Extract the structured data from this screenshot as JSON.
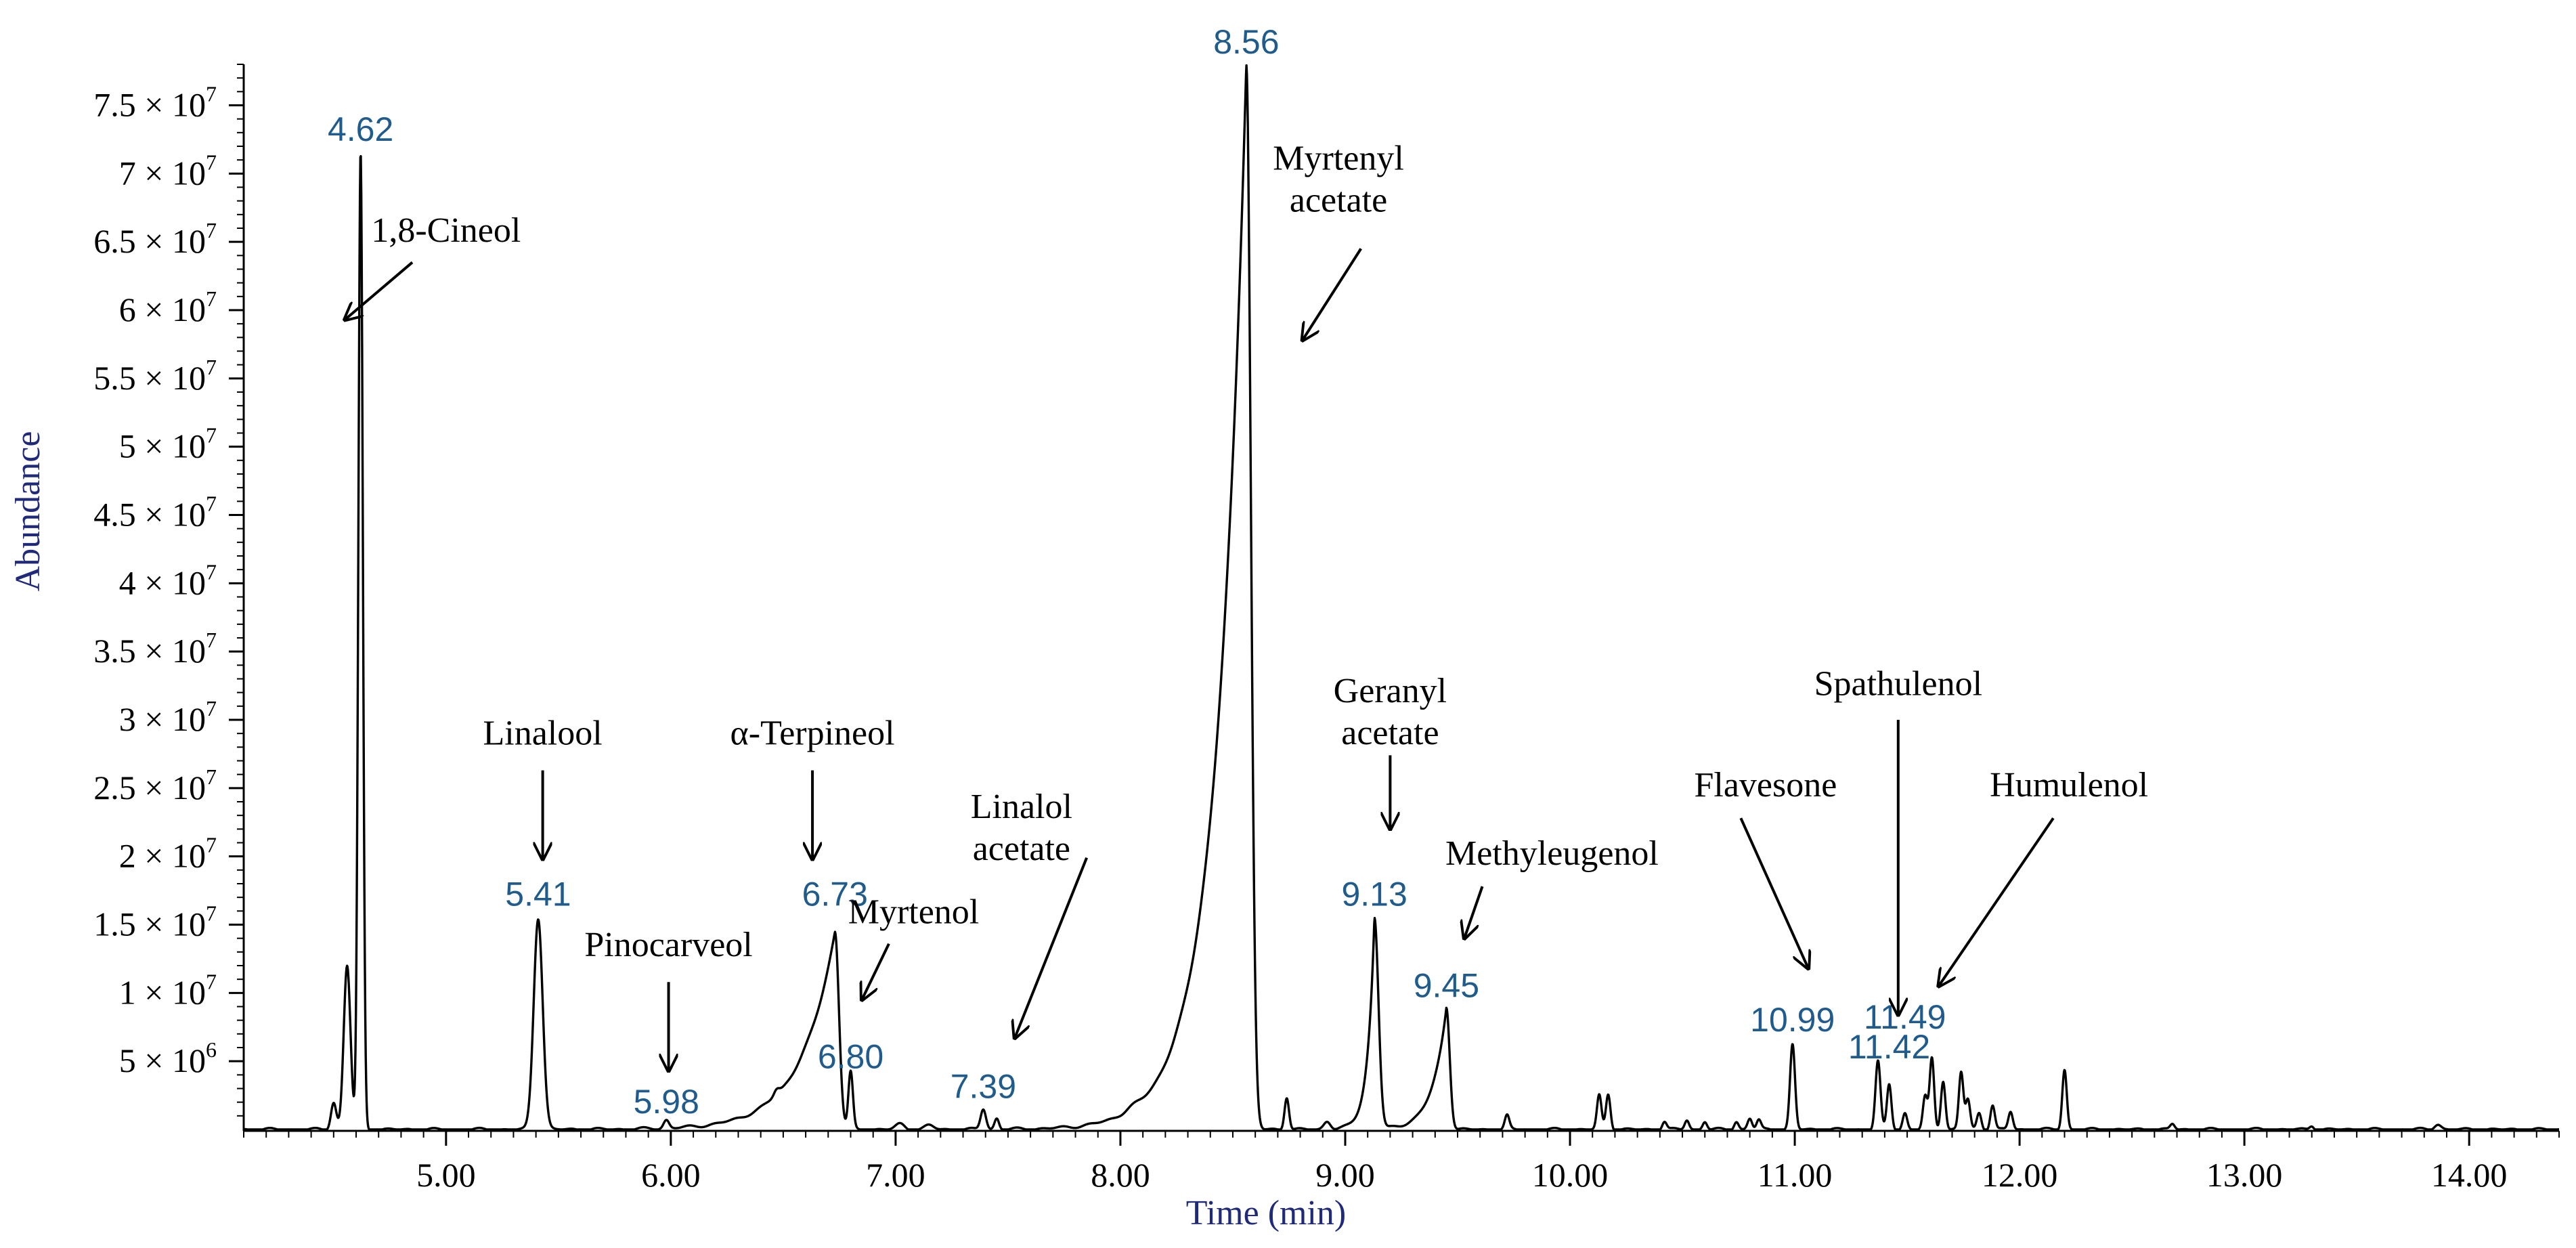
{
  "chart_data": {
    "type": "line",
    "xlabel": "Time (min)",
    "ylabel": "Abundance",
    "xlim": [
      4.1,
      14.4
    ],
    "ylim": [
      0,
      7.8
    ],
    "x_ticks": [
      {
        "value": 5.0,
        "label": "5.00"
      },
      {
        "value": 6.0,
        "label": "6.00"
      },
      {
        "value": 7.0,
        "label": "7.00"
      },
      {
        "value": 8.0,
        "label": "8.00"
      },
      {
        "value": 9.0,
        "label": "9.00"
      },
      {
        "value": 10.0,
        "label": "10.00"
      },
      {
        "value": 11.0,
        "label": "11.00"
      },
      {
        "value": 12.0,
        "label": "12.00"
      },
      {
        "value": 13.0,
        "label": "13.00"
      },
      {
        "value": 14.0,
        "label": "14.00"
      }
    ],
    "y_ticks": [
      {
        "value": 0.5,
        "mantissa": "5",
        "exponent": "6"
      },
      {
        "value": 1.0,
        "mantissa": "1",
        "exponent": "7"
      },
      {
        "value": 1.5,
        "mantissa": "1.5",
        "exponent": "7"
      },
      {
        "value": 2.0,
        "mantissa": "2",
        "exponent": "7"
      },
      {
        "value": 2.5,
        "mantissa": "2.5",
        "exponent": "7"
      },
      {
        "value": 3.0,
        "mantissa": "3",
        "exponent": "7"
      },
      {
        "value": 3.5,
        "mantissa": "3.5",
        "exponent": "7"
      },
      {
        "value": 4.0,
        "mantissa": "4",
        "exponent": "7"
      },
      {
        "value": 4.5,
        "mantissa": "4.5",
        "exponent": "7"
      },
      {
        "value": 5.0,
        "mantissa": "5",
        "exponent": "7"
      },
      {
        "value": 5.5,
        "mantissa": "5.5",
        "exponent": "7"
      },
      {
        "value": 6.0,
        "mantissa": "6",
        "exponent": "7"
      },
      {
        "value": 6.5,
        "mantissa": "6.5",
        "exponent": "7"
      },
      {
        "value": 7.0,
        "mantissa": "7",
        "exponent": "7"
      },
      {
        "value": 7.5,
        "mantissa": "7.5",
        "exponent": "7"
      }
    ],
    "peaks": [
      {
        "x": 4.5,
        "y": 0.2,
        "w": 0.012,
        "shape": "gauss"
      },
      {
        "x": 4.56,
        "y": 1.2,
        "w": 0.015,
        "shape": "gauss"
      },
      {
        "x": 4.62,
        "y": 7.15,
        "w": 0.01,
        "shape": "gauss"
      },
      {
        "x": 5.41,
        "y": 1.55,
        "w": 0.02,
        "shape": "gauss"
      },
      {
        "x": 5.98,
        "y": 0.06,
        "w": 0.012,
        "shape": "gauss"
      },
      {
        "x": 6.47,
        "y": 0.04,
        "w": 0.012,
        "shape": "gauss"
      },
      {
        "x": 6.73,
        "y": 1.45,
        "w": 0.018,
        "tail": 0.15,
        "shape": "tail"
      },
      {
        "x": 6.8,
        "y": 0.42,
        "w": 0.01,
        "shape": "gauss"
      },
      {
        "x": 7.02,
        "y": 0.04,
        "w": 0.02,
        "shape": "gauss"
      },
      {
        "x": 7.15,
        "y": 0.03,
        "w": 0.02,
        "shape": "gauss"
      },
      {
        "x": 7.39,
        "y": 0.15,
        "w": 0.012,
        "shape": "gauss"
      },
      {
        "x": 7.45,
        "y": 0.08,
        "w": 0.01,
        "shape": "gauss"
      },
      {
        "x": 8.05,
        "y": 0.02,
        "w": 0.03,
        "shape": "gauss"
      },
      {
        "x": 8.56,
        "y": 7.8,
        "w": 0.02,
        "tail": 0.13,
        "shape": "tail"
      },
      {
        "x": 8.74,
        "y": 0.24,
        "w": 0.01,
        "shape": "gauss"
      },
      {
        "x": 8.92,
        "y": 0.06,
        "w": 0.015,
        "shape": "gauss"
      },
      {
        "x": 9.13,
        "y": 1.55,
        "w": 0.018,
        "tail": 0.03,
        "shape": "tail"
      },
      {
        "x": 9.45,
        "y": 0.9,
        "w": 0.015,
        "tail": 0.06,
        "shape": "tail"
      },
      {
        "x": 9.72,
        "y": 0.1,
        "w": 0.01,
        "shape": "gauss"
      },
      {
        "x": 10.13,
        "y": 0.25,
        "w": 0.01,
        "shape": "gauss"
      },
      {
        "x": 10.17,
        "y": 0.26,
        "w": 0.01,
        "shape": "gauss"
      },
      {
        "x": 10.42,
        "y": 0.06,
        "w": 0.01,
        "shape": "gauss"
      },
      {
        "x": 10.52,
        "y": 0.07,
        "w": 0.01,
        "shape": "gauss"
      },
      {
        "x": 10.6,
        "y": 0.06,
        "w": 0.01,
        "shape": "gauss"
      },
      {
        "x": 10.74,
        "y": 0.06,
        "w": 0.01,
        "shape": "gauss"
      },
      {
        "x": 10.8,
        "y": 0.08,
        "w": 0.01,
        "shape": "gauss"
      },
      {
        "x": 10.84,
        "y": 0.07,
        "w": 0.01,
        "shape": "gauss"
      },
      {
        "x": 10.99,
        "y": 0.62,
        "w": 0.011,
        "shape": "gauss"
      },
      {
        "x": 11.37,
        "y": 0.5,
        "w": 0.011,
        "shape": "gauss"
      },
      {
        "x": 11.42,
        "y": 0.33,
        "w": 0.01,
        "shape": "gauss"
      },
      {
        "x": 11.49,
        "y": 0.12,
        "w": 0.01,
        "shape": "gauss"
      },
      {
        "x": 11.58,
        "y": 0.24,
        "w": 0.01,
        "shape": "gauss"
      },
      {
        "x": 11.61,
        "y": 0.52,
        "w": 0.01,
        "shape": "gauss"
      },
      {
        "x": 11.66,
        "y": 0.36,
        "w": 0.01,
        "shape": "gauss"
      },
      {
        "x": 11.74,
        "y": 0.42,
        "w": 0.01,
        "shape": "gauss"
      },
      {
        "x": 11.77,
        "y": 0.22,
        "w": 0.01,
        "shape": "gauss"
      },
      {
        "x": 11.82,
        "y": 0.12,
        "w": 0.01,
        "shape": "gauss"
      },
      {
        "x": 11.88,
        "y": 0.18,
        "w": 0.01,
        "shape": "gauss"
      },
      {
        "x": 11.96,
        "y": 0.13,
        "w": 0.01,
        "shape": "gauss"
      },
      {
        "x": 12.2,
        "y": 0.44,
        "w": 0.01,
        "shape": "gauss"
      },
      {
        "x": 12.68,
        "y": 0.04,
        "w": 0.01,
        "shape": "gauss"
      },
      {
        "x": 13.3,
        "y": 0.03,
        "w": 0.01,
        "shape": "gauss"
      },
      {
        "x": 13.86,
        "y": 0.04,
        "w": 0.015,
        "shape": "gauss"
      }
    ],
    "rt_labels": [
      {
        "text": "4.62",
        "x": 4.62,
        "y": 7.24
      },
      {
        "text": "5.41",
        "x": 5.41,
        "y": 1.64
      },
      {
        "text": "5.98",
        "x": 5.98,
        "y": 0.12
      },
      {
        "text": "6.73",
        "x": 6.73,
        "y": 1.64
      },
      {
        "text": "6.80",
        "x": 6.8,
        "y": 0.45
      },
      {
        "text": "7.39",
        "x": 7.39,
        "y": 0.23
      },
      {
        "text": "8.56",
        "x": 8.56,
        "y": 7.88
      },
      {
        "text": "9.13",
        "x": 9.13,
        "y": 1.64
      },
      {
        "text": "9.45",
        "x": 9.45,
        "y": 0.97
      },
      {
        "text": "10.99",
        "x": 10.99,
        "y": 0.72
      },
      {
        "text": "11.42",
        "x": 11.42,
        "y": 0.52
      },
      {
        "text": "11.49",
        "x": 11.49,
        "y": 0.74
      }
    ],
    "annotations": [
      {
        "lines": [
          "1,8-Cineol"
        ],
        "x": 5.0,
        "y": 6.5,
        "arrow_from": [
          4.85,
          6.35
        ],
        "arrow_to": [
          4.55,
          5.93
        ]
      },
      {
        "lines": [
          "Linalool"
        ],
        "x": 5.43,
        "y": 2.82,
        "arrow_from": [
          5.43,
          2.63
        ],
        "arrow_to": [
          5.43,
          1.98
        ]
      },
      {
        "lines": [
          "Pinocarveol"
        ],
        "x": 5.99,
        "y": 1.27,
        "arrow_from": [
          5.99,
          1.08
        ],
        "arrow_to": [
          5.99,
          0.43
        ]
      },
      {
        "lines": [
          "α-Terpineol"
        ],
        "x": 6.63,
        "y": 2.82,
        "arrow_from": [
          6.63,
          2.63
        ],
        "arrow_to": [
          6.63,
          1.98
        ]
      },
      {
        "lines": [
          "Myrtenol"
        ],
        "x": 7.08,
        "y": 1.51,
        "arrow_from": [
          6.97,
          1.36
        ],
        "arrow_to": [
          6.85,
          0.95
        ]
      },
      {
        "lines": [
          "Linalol",
          "acetate"
        ],
        "x": 7.56,
        "y": 2.28,
        "arrow_from": [
          7.85,
          1.99
        ],
        "arrow_to": [
          7.53,
          0.67
        ]
      },
      {
        "lines": [
          "Myrtenyl",
          "acetate"
        ],
        "x": 8.97,
        "y": 7.03,
        "arrow_from": [
          9.07,
          6.45
        ],
        "arrow_to": [
          8.81,
          5.78
        ]
      },
      {
        "lines": [
          "Geranyl",
          "acetate"
        ],
        "x": 9.2,
        "y": 3.13,
        "arrow_from": [
          9.2,
          2.74
        ],
        "arrow_to": [
          9.2,
          2.2
        ]
      },
      {
        "lines": [
          "Methyleugenol"
        ],
        "x": 9.92,
        "y": 1.94,
        "arrow_from": [
          9.61,
          1.78
        ],
        "arrow_to": [
          9.53,
          1.4
        ]
      },
      {
        "lines": [
          "Flavesone"
        ],
        "x": 10.87,
        "y": 2.44,
        "arrow_from": [
          10.76,
          2.28
        ],
        "arrow_to": [
          11.06,
          1.18
        ]
      },
      {
        "lines": [
          "Spathulenol"
        ],
        "x": 11.46,
        "y": 3.18,
        "arrow_from": [
          11.46,
          3.0
        ],
        "arrow_to": [
          11.46,
          0.84
        ]
      },
      {
        "lines": [
          "Humulenol"
        ],
        "x": 12.22,
        "y": 2.44,
        "arrow_from": [
          12.15,
          2.28
        ],
        "arrow_to": [
          11.64,
          1.05
        ]
      }
    ]
  }
}
